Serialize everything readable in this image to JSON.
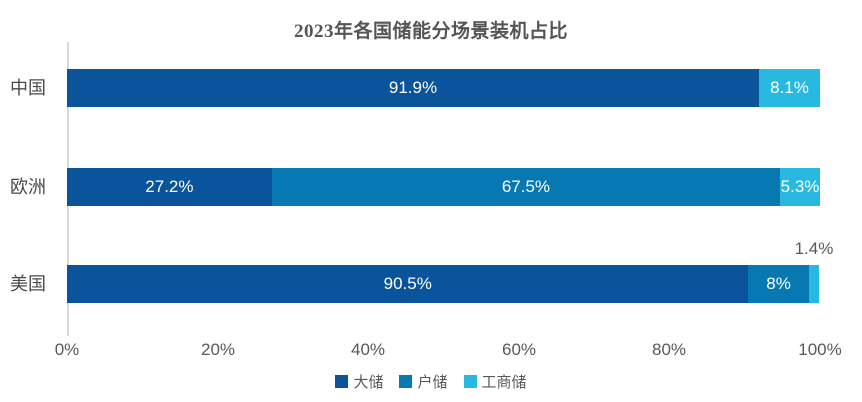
{
  "title": "2023年各国储能分场景装机占比",
  "series_colors": {
    "大储": "#0A549B",
    "户储": "#0878B2",
    "工商储": "#29B8E0"
  },
  "colors": {
    "axis_line": "#D9D9D9",
    "tick_text": "#595959",
    "title_text": "#555555",
    "bar_label_text": "#FFFFFF",
    "outside_label_text": "#595959"
  },
  "legend": [
    {
      "label": "大储",
      "color": "#0A549B"
    },
    {
      "label": "户储",
      "color": "#0878B2"
    },
    {
      "label": "工商储",
      "color": "#29B8E0"
    }
  ],
  "x_axis": {
    "ticks": [
      "0%",
      "20%",
      "40%",
      "60%",
      "80%",
      "100%"
    ]
  },
  "rows": [
    {
      "category": "中国",
      "segments": [
        {
          "series": "大储",
          "value": 91.9,
          "label": "91.9%"
        },
        {
          "series": "工商储",
          "value": 8.1,
          "label": "8.1%"
        }
      ]
    },
    {
      "category": "欧洲",
      "segments": [
        {
          "series": "大储",
          "value": 27.2,
          "label": "27.2%"
        },
        {
          "series": "户储",
          "value": 67.5,
          "label": "67.5%"
        },
        {
          "series": "工商储",
          "value": 5.3,
          "label": "5.3%"
        }
      ]
    },
    {
      "category": "美国",
      "segments": [
        {
          "series": "大储",
          "value": 90.5,
          "label": "90.5%"
        },
        {
          "series": "户储",
          "value": 8,
          "label": "8%"
        },
        {
          "series": "工商储",
          "value": 1.4,
          "label": "1.4%",
          "label_outside": true
        }
      ]
    }
  ],
  "chart_data": {
    "type": "bar",
    "orientation": "horizontal",
    "stacked": true,
    "title": "2023年各国储能分场景装机占比",
    "categories": [
      "中国",
      "欧洲",
      "美国"
    ],
    "series": [
      {
        "name": "大储",
        "values": [
          91.9,
          27.2,
          90.5
        ]
      },
      {
        "name": "户储",
        "values": [
          0,
          67.5,
          8
        ]
      },
      {
        "name": "工商储",
        "values": [
          8.1,
          5.3,
          1.4
        ]
      }
    ],
    "xlabel": "",
    "ylabel": "",
    "xlim": [
      0,
      100
    ],
    "x_tick_labels": [
      "0%",
      "20%",
      "40%",
      "60%",
      "80%",
      "100%"
    ],
    "grid": false,
    "legend_position": "bottom",
    "value_label_format": "percent"
  }
}
